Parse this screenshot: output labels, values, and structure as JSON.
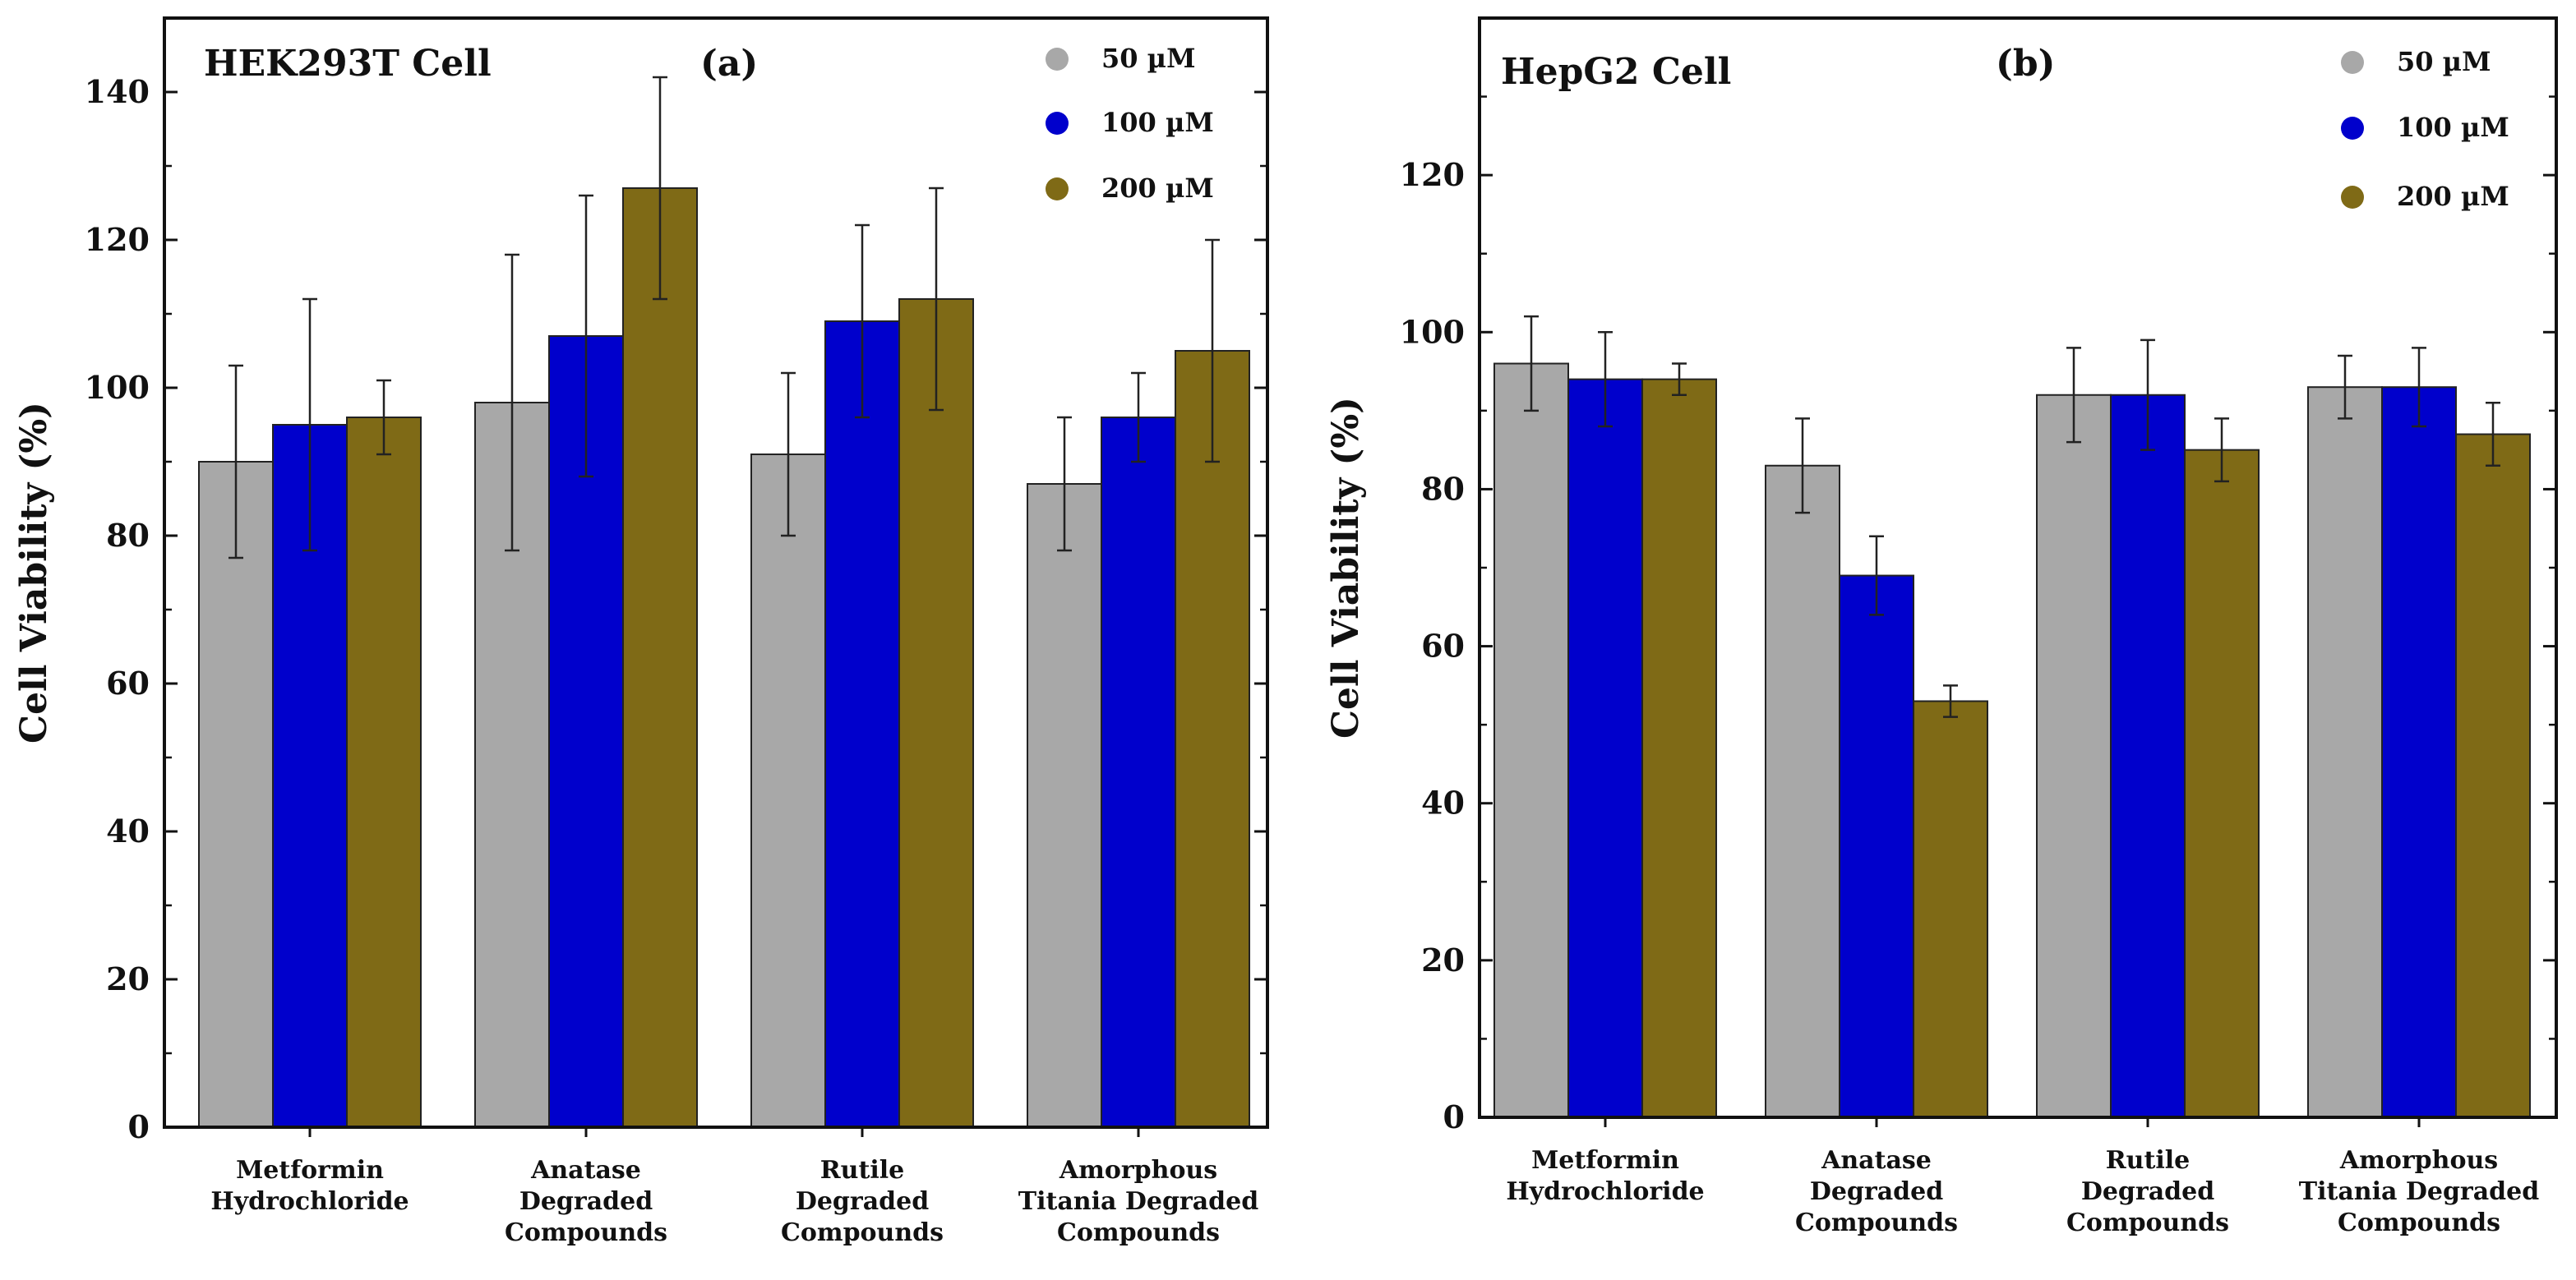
{
  "chart_data": [
    {
      "type": "bar",
      "title": "HEK293T Cell",
      "panel_label": "(a)",
      "ylabel": "Cell Viability (%)",
      "xlabel": "",
      "ylim": [
        0,
        150
      ],
      "yticks": [
        0,
        20,
        40,
        60,
        80,
        100,
        120,
        140
      ],
      "categories": [
        [
          "Metformin",
          "Hydrochloride"
        ],
        [
          "Anatase",
          "Degraded",
          "Compounds"
        ],
        [
          "Rutile",
          "Degraded",
          "Compounds"
        ],
        [
          "Amorphous",
          "Titania Degraded",
          "Compounds"
        ]
      ],
      "legend_position": "top-right",
      "series": [
        {
          "name": "50 µM",
          "color": "#a8a8a8",
          "values": [
            90,
            98,
            91,
            87
          ],
          "errors": [
            13,
            20,
            11,
            9
          ]
        },
        {
          "name": "100 µM",
          "color": "#0000cc",
          "values": [
            95,
            107,
            109,
            96
          ],
          "errors": [
            17,
            19,
            13,
            6
          ]
        },
        {
          "name": "200 µM",
          "color": "#7f6a16",
          "values": [
            96,
            127,
            112,
            105
          ],
          "errors": [
            5,
            15,
            15,
            15
          ]
        }
      ]
    },
    {
      "type": "bar",
      "title": "HepG2 Cell",
      "panel_label": "(b)",
      "ylabel": "Cell Viability (%)",
      "xlabel": "",
      "ylim": [
        0,
        140
      ],
      "yticks": [
        0,
        20,
        40,
        60,
        80,
        100,
        120
      ],
      "categories": [
        [
          "Metformin",
          "Hydrochloride"
        ],
        [
          "Anatase",
          "Degraded",
          "Compounds"
        ],
        [
          "Rutile",
          "Degraded",
          "Compounds"
        ],
        [
          "Amorphous",
          "Titania Degraded",
          "Compounds"
        ]
      ],
      "legend_position": "top-right",
      "series": [
        {
          "name": "50 µM",
          "color": "#a8a8a8",
          "values": [
            96,
            83,
            92,
            93
          ],
          "errors": [
            6,
            6,
            6,
            4
          ]
        },
        {
          "name": "100 µM",
          "color": "#0000cc",
          "values": [
            94,
            69,
            92,
            93
          ],
          "errors": [
            6,
            5,
            7,
            5
          ]
        },
        {
          "name": "200 µM",
          "color": "#7f6a16",
          "values": [
            94,
            53,
            85,
            87
          ],
          "errors": [
            2,
            2,
            4,
            4
          ]
        }
      ]
    }
  ]
}
